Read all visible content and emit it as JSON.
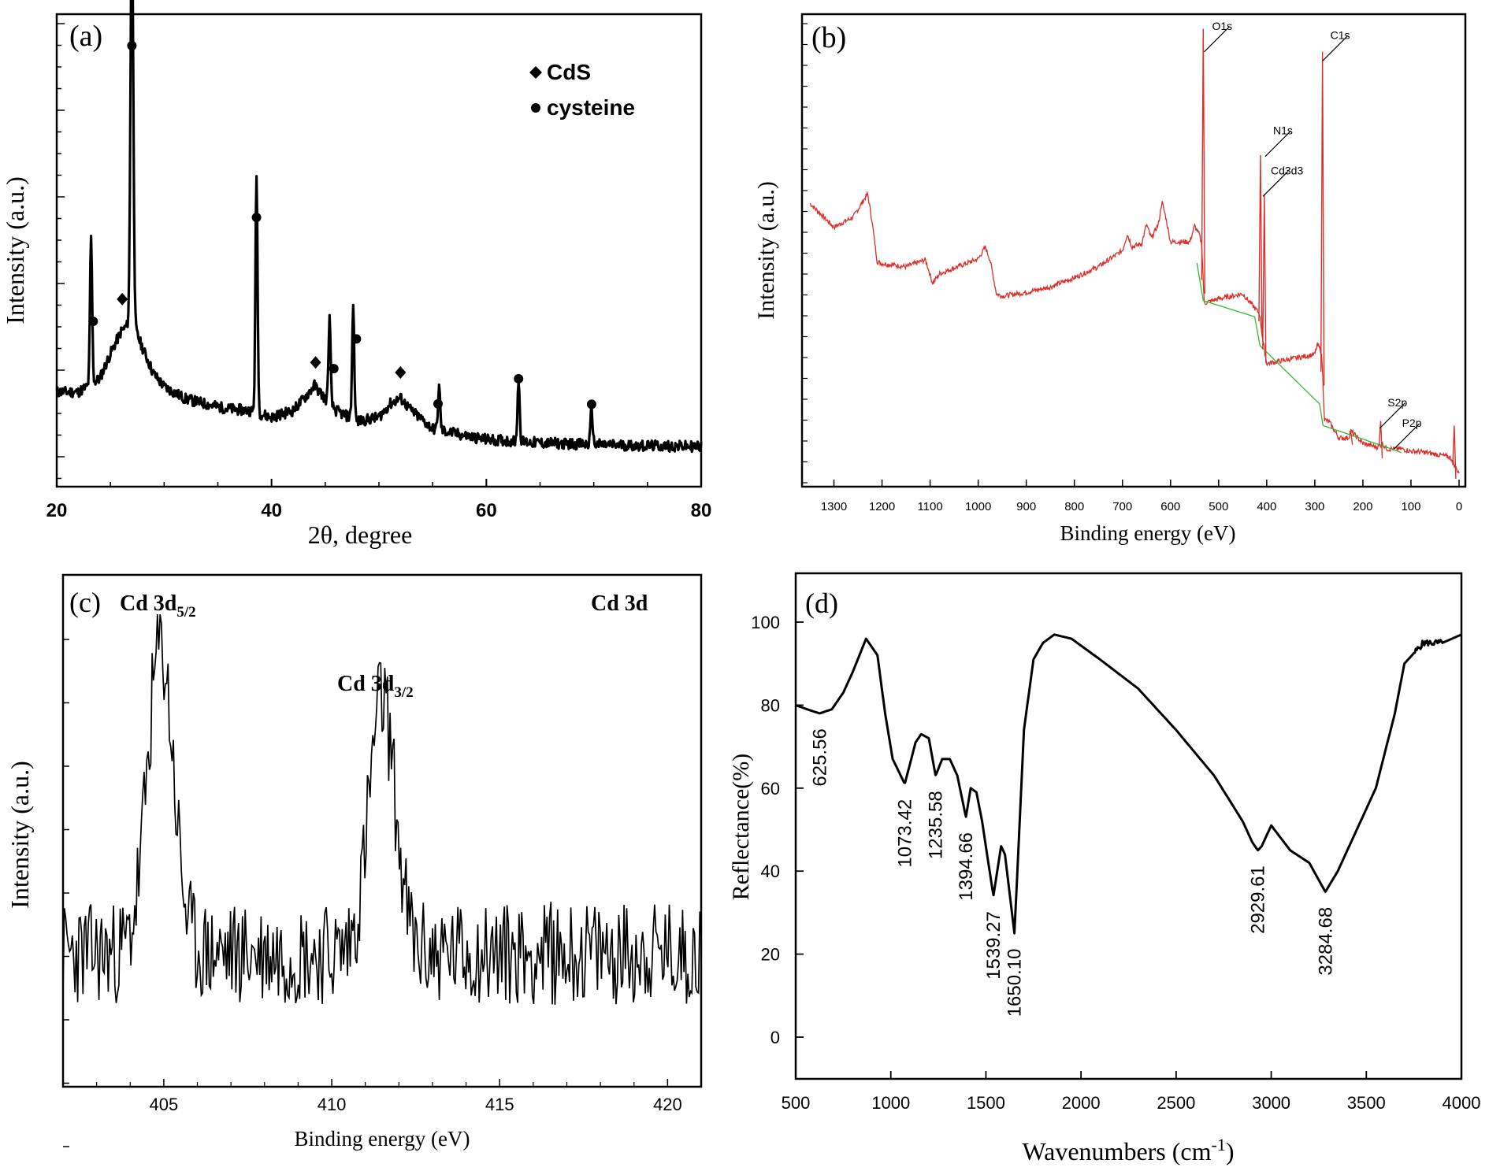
{
  "chart_data": [
    {
      "id": "a",
      "type": "line",
      "panel_label": "(a)",
      "title": "",
      "xlabel": "2θ, degree",
      "ylabel": "Intensity (a.u.)",
      "xlim": [
        20,
        80
      ],
      "ylim": [
        0,
        100
      ],
      "xticks": [
        {
          "value": 20,
          "label": "20"
        },
        {
          "value": 40,
          "label": "40"
        },
        {
          "value": 60,
          "label": "60"
        },
        {
          "value": 80,
          "label": "80"
        }
      ],
      "legend": {
        "position": "top-right",
        "entries": [
          {
            "marker": "diamond",
            "label": "CdS"
          },
          {
            "marker": "circle",
            "label": "cysteine"
          }
        ]
      },
      "baseline": {
        "x": [
          20,
          22,
          24,
          25,
          26,
          27,
          28,
          29,
          30,
          32,
          34,
          36,
          38,
          40,
          42,
          43,
          44,
          45,
          46,
          48,
          50,
          51,
          52,
          53,
          55,
          58,
          60,
          65,
          70,
          75,
          80
        ],
        "y": [
          17.4,
          17.3,
          20.5,
          26.5,
          31.8,
          34.2,
          27.8,
          21.8,
          18.6,
          15.7,
          14.4,
          13.3,
          12.9,
          11.3,
          12.9,
          15.7,
          18.9,
          15.7,
          12.9,
          10.3,
          11.3,
          14.4,
          15.9,
          12.9,
          8.6,
          6.9,
          6.0,
          5.2,
          4.8,
          4.5,
          4.3
        ]
      },
      "peaks": [
        {
          "x": 23.2,
          "height": 35.0,
          "marker": "circle"
        },
        {
          "x": 27.0,
          "height": 97.8,
          "marker": "circle"
        },
        {
          "x": 38.6,
          "height": 56.9,
          "marker": "circle"
        },
        {
          "x": 45.4,
          "height": 20.3,
          "marker": "circle"
        },
        {
          "x": 47.6,
          "height": 27.2,
          "marker": "circle"
        },
        {
          "x": 55.6,
          "height": 10.1,
          "marker": "circle"
        },
        {
          "x": 63.0,
          "height": 14.7,
          "marker": "circle"
        },
        {
          "x": 69.8,
          "height": 8.4,
          "marker": "circle"
        }
      ],
      "markers": [
        {
          "x": 23.4,
          "y": 34.2,
          "shape": "circle"
        },
        {
          "x": 26.1,
          "y": 39.5,
          "shape": "diamond"
        },
        {
          "x": 27.0,
          "y": 100.0,
          "shape": "circle"
        },
        {
          "x": 38.6,
          "y": 59.0,
          "shape": "circle"
        },
        {
          "x": 44.1,
          "y": 24.4,
          "shape": "diamond"
        },
        {
          "x": 45.8,
          "y": 22.9,
          "shape": "circle"
        },
        {
          "x": 47.9,
          "y": 30.0,
          "shape": "circle"
        },
        {
          "x": 52.0,
          "y": 22.0,
          "shape": "diamond"
        },
        {
          "x": 55.5,
          "y": 14.5,
          "shape": "circle"
        },
        {
          "x": 63.0,
          "y": 20.5,
          "shape": "circle"
        },
        {
          "x": 69.8,
          "y": 14.4,
          "shape": "circle"
        }
      ]
    },
    {
      "id": "b",
      "type": "line",
      "panel_label": "(b)",
      "title": "",
      "xlabel": "Binding energy (eV)",
      "ylabel": "Intensity (a.u.)",
      "xlim": [
        1350,
        0
      ],
      "ylim": [
        0,
        100
      ],
      "xticks": [
        1300,
        1200,
        1100,
        1000,
        900,
        800,
        700,
        600,
        500,
        400,
        300,
        200,
        100,
        0
      ],
      "series_color": "#d9302c",
      "secondary_color": "#33bb33",
      "survey": {
        "x": [
          1350,
          1300,
          1260,
          1240,
          1230,
          1222,
          1210,
          1200,
          1150,
          1110,
          1105,
          1095,
          1080,
          1000,
          985,
          975,
          962,
          950,
          900,
          850,
          800,
          750,
          700,
          690,
          680,
          660,
          650,
          640,
          625,
          618,
          610,
          600,
          560,
          550,
          540,
          535,
          530,
          520,
          500,
          450,
          420,
          415,
          408,
          400,
          350,
          300,
          295,
          288,
          285,
          280,
          270,
          250,
          230,
          225,
          200,
          170,
          160,
          150,
          120,
          100,
          80,
          40,
          20,
          15,
          10,
          5,
          0
        ],
        "y": [
          60.0,
          54.8,
          57.0,
          60.4,
          62.1,
          57.0,
          47.3,
          46.9,
          46.2,
          47.7,
          46.2,
          42.6,
          44.7,
          47.9,
          50.5,
          47.5,
          40.3,
          39.8,
          40.6,
          41.8,
          43.8,
          46.2,
          49.7,
          53.3,
          50.5,
          51.2,
          55.4,
          52.4,
          55.5,
          60.4,
          57.0,
          51.6,
          51.6,
          55.1,
          53.1,
          51.0,
          38.2,
          38.6,
          39.2,
          40.3,
          36.6,
          36.0,
          30.1,
          25.1,
          26.1,
          27.1,
          29.2,
          28.1,
          25.9,
          12.9,
          12.4,
          8.9,
          8.9,
          10.4,
          7.7,
          6.9,
          7.7,
          6.5,
          6.5,
          6.0,
          5.9,
          5.2,
          4.7,
          4.3,
          3.0,
          2.0,
          1.4
        ]
      },
      "green_trace": {
        "x": [
          545,
          532,
          425,
          414,
          290,
          283,
          140,
          120
        ],
        "y": [
          47.0,
          38.8,
          35.3,
          29.0,
          16.3,
          11.6,
          6.5,
          5.7
        ]
      },
      "spikes": [
        {
          "x": 532,
          "top": 98.0
        },
        {
          "x": 413,
          "top": 70.5
        },
        {
          "x": 405,
          "top": 62.0
        },
        {
          "x": 284,
          "top": 93.0
        },
        {
          "x": 163,
          "top": 12.6
        },
        {
          "x": 225,
          "top": 10.2
        },
        {
          "x": 10,
          "top": 11.6
        }
      ],
      "annotations": [
        {
          "text": "O1s",
          "x": 530,
          "y": 93.0
        },
        {
          "text": "C1s",
          "x": 284,
          "y": 91.0
        },
        {
          "text": "N1s",
          "x": 403,
          "y": 70.2
        },
        {
          "text": "Cd3d3",
          "x": 408,
          "y": 61.5
        },
        {
          "text": "S2p",
          "x": 165,
          "y": 11.0
        },
        {
          "text": "P2p",
          "x": 135,
          "y": 6.5
        }
      ]
    },
    {
      "id": "c",
      "type": "line",
      "panel_label": "(c)",
      "title": "Cd 3d",
      "xlabel": "Binding energy (eV)",
      "ylabel": "Intensity (a.u.)",
      "xlim": [
        402,
        421
      ],
      "ylim": [
        0,
        100
      ],
      "xticks": [
        405,
        410,
        415,
        420
      ],
      "peak_labels": [
        {
          "prefix": "Cd 3d",
          "sub": "5/2"
        },
        {
          "prefix": "Cd 3d",
          "sub": "3/2"
        }
      ],
      "peaks": [
        {
          "center": 404.9,
          "width": 0.55,
          "height": 65
        },
        {
          "center": 411.5,
          "width": 0.55,
          "height": 54
        }
      ],
      "background": 28,
      "noise_amplitude": 22,
      "points": 480
    },
    {
      "id": "d",
      "type": "line",
      "panel_label": "(d)",
      "title": "",
      "xlabel": "Wavenumbers (cm",
      "xlabel_sup": "-1",
      "xlabel_end": ")",
      "ylabel": "Reflectance(%)",
      "xlim": [
        500,
        4000
      ],
      "ylim": [
        -10,
        110
      ],
      "xticks": [
        500,
        1000,
        1500,
        2000,
        2500,
        3000,
        3500,
        4000
      ],
      "yticks": [
        0,
        20,
        40,
        60,
        80,
        100
      ],
      "series": {
        "x": [
          500,
          560,
          625.56,
          690,
          750,
          800,
          870,
          930,
          970,
          1010,
          1073.42,
          1130,
          1160,
          1200,
          1235.58,
          1270,
          1310,
          1350,
          1394.66,
          1420,
          1450,
          1480,
          1539.27,
          1580,
          1600,
          1650.1,
          1700,
          1750,
          1800,
          1860,
          1950,
          2100,
          2300,
          2500,
          2700,
          2850,
          2900,
          2929.61,
          2950,
          3000,
          3050,
          3100,
          3200,
          3284.68,
          3350,
          3450,
          3550,
          3650,
          3700,
          3800,
          3900,
          4000
        ],
        "y": [
          80,
          79,
          78,
          79,
          83,
          88,
          96,
          92,
          78,
          67,
          61,
          71,
          73,
          72,
          63,
          67,
          67,
          63,
          53,
          60,
          59,
          52,
          34,
          46,
          44,
          25,
          74,
          91,
          95,
          97,
          96,
          91,
          84,
          74,
          63,
          52,
          47,
          45,
          46,
          51,
          48,
          45,
          42,
          35,
          40,
          50,
          60,
          78,
          90,
          95,
          95,
          97
        ]
      },
      "peak_labels": [
        {
          "text": "625.56",
          "x": 625.56,
          "y": 77
        },
        {
          "text": "1073.42",
          "x": 1073.42,
          "y": 60
        },
        {
          "text": "1235.58",
          "x": 1235.58,
          "y": 62
        },
        {
          "text": "1394.66",
          "x": 1394.66,
          "y": 52
        },
        {
          "text": "1539.27",
          "x": 1539.27,
          "y": 33
        },
        {
          "text": "1650.10",
          "x": 1650.1,
          "y": 24
        },
        {
          "text": "2929.61",
          "x": 2929.61,
          "y": 44
        },
        {
          "text": "3284.68",
          "x": 3284.68,
          "y": 34
        }
      ]
    }
  ]
}
